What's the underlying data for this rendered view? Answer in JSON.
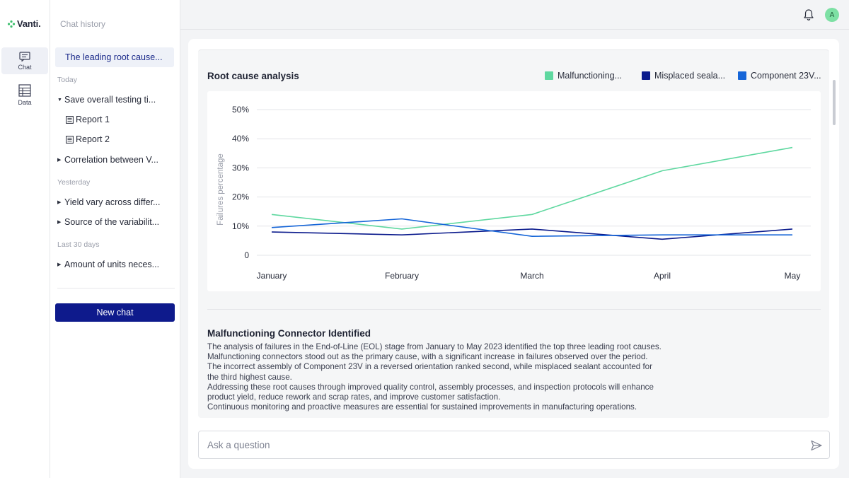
{
  "app": {
    "logo_text": "Vanti.",
    "brand_color": "#0e1a8c"
  },
  "rail": {
    "items": [
      {
        "label": "Chat",
        "icon": "chat-icon"
      },
      {
        "label": "Data",
        "icon": "table-icon"
      }
    ]
  },
  "history": {
    "title": "Chat history",
    "active": "The leading root cause...",
    "groups": [
      {
        "label": "Today"
      },
      {
        "label": "Yesterday"
      },
      {
        "label": "Last 30 days"
      }
    ],
    "items": [
      "Save overall testing ti...",
      "Correlation between V...",
      "Yield vary across differ...",
      "Source of the variabilit...",
      "Amount of units neces..."
    ],
    "sub_items": [
      "Report 1",
      "Report 2"
    ],
    "new_chat": "New chat"
  },
  "topbar": {
    "avatar_initial": "A"
  },
  "card": {
    "title": "Root cause analysis",
    "legend": [
      "Malfunctioning...",
      "Misplaced seala...",
      "Component 23V..."
    ],
    "insight_title": "Malfunctioning Connector Identified",
    "insight_lines": [
      "The analysis of failures in the End-of-Line (EOL) stage from January to May 2023 identified the top three leading root causes.",
      "Malfunctioning connectors stood out as the primary cause, with a significant increase in failures observed over the period.",
      "The incorrect assembly of Component 23V in a reversed orientation ranked second, while misplaced sealant accounted for",
      "the third highest cause.",
      "Addressing these root causes through improved quality control, assembly processes, and inspection protocols will enhance",
      "product yield, reduce rework and scrap rates, and improve customer satisfaction.",
      "Continuous monitoring and proactive measures are essential for sustained improvements in manufacturing operations."
    ]
  },
  "ask": {
    "placeholder": "Ask a question"
  },
  "chart_data": {
    "type": "line",
    "title": "Root cause analysis",
    "xlabel": "",
    "ylabel": "Failures percentage",
    "categories": [
      "January",
      "February",
      "March",
      "April",
      "May"
    ],
    "ylim": [
      0,
      50
    ],
    "yticks": [
      "0",
      "10%",
      "20%",
      "30%",
      "40%",
      "50%"
    ],
    "ytick_values": [
      0,
      10,
      20,
      30,
      40,
      50
    ],
    "grid": true,
    "series": [
      {
        "name": "Malfunctioning...",
        "color": "#5fd8a0",
        "values": [
          14,
          9,
          14,
          29,
          37
        ]
      },
      {
        "name": "Misplaced seala...",
        "color": "#0a1a8c",
        "values": [
          8,
          7,
          9,
          5.5,
          9
        ]
      },
      {
        "name": "Component 23V...",
        "color": "#1565d8",
        "values": [
          9.5,
          12.5,
          6.5,
          7,
          7
        ]
      }
    ]
  }
}
